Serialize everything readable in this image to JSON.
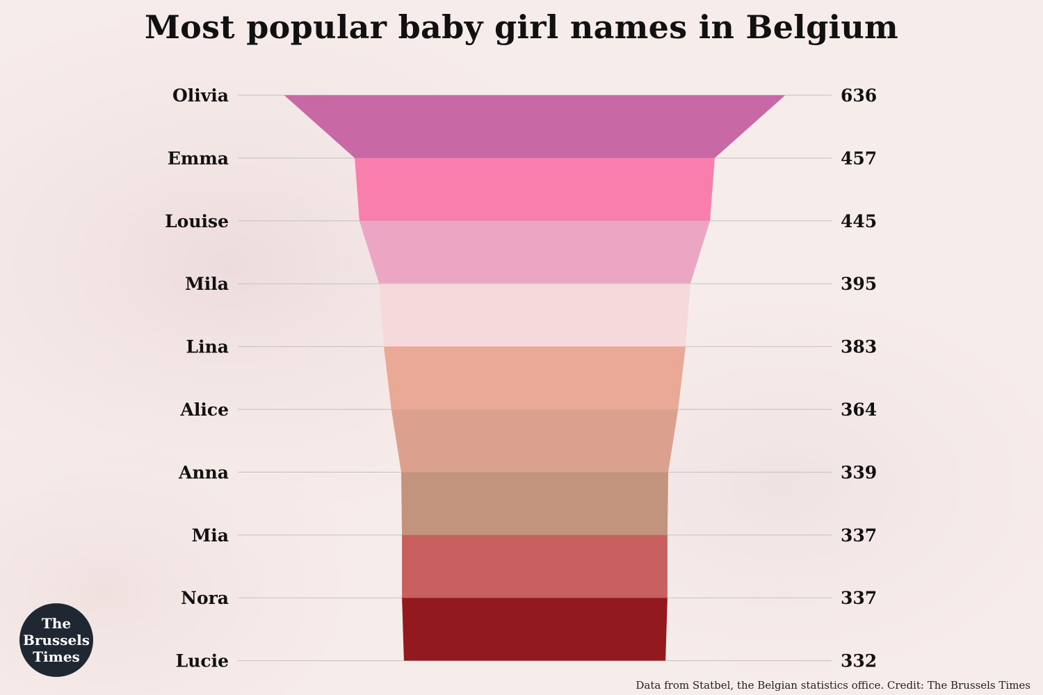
{
  "chart_data": {
    "type": "funnel",
    "title": "Most popular baby girl names in Belgium",
    "categories": [
      "Olivia",
      "Emma",
      "Louise",
      "Mila",
      "Lina",
      "Alice",
      "Anna",
      "Mia",
      "Nora",
      "Lucie"
    ],
    "values": [
      636,
      457,
      445,
      395,
      383,
      364,
      339,
      337,
      337,
      332
    ],
    "colors": [
      "#c868a4",
      "#f87fab",
      "#eba6c4",
      "#f6d9db",
      "#eaa896",
      "#dca08e",
      "#c2947e",
      "#c96060",
      "#921a1f"
    ],
    "grid": true,
    "legend": "none"
  },
  "footer": {
    "source": "Data from Statbel, the Belgian statistics office. Credit: The Brussels Times"
  },
  "logo": {
    "line1": "The",
    "line2": "Brussels",
    "line3": "Times"
  }
}
